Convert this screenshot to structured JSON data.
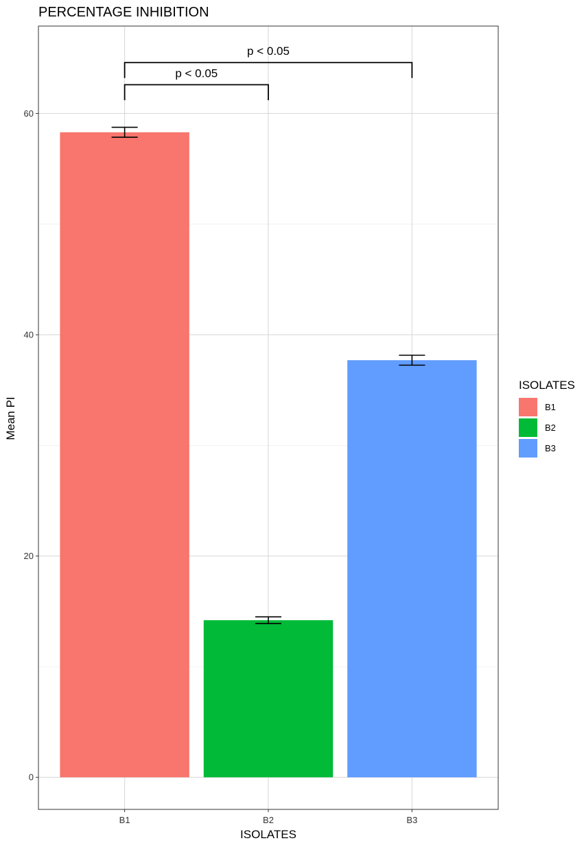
{
  "chart_data": {
    "type": "bar",
    "title": "PERCENTAGE INHIBITION",
    "xlabel": "ISOLATES",
    "ylabel": "Mean PI",
    "categories": [
      "B1",
      "B2",
      "B3"
    ],
    "values": [
      58.3,
      14.2,
      37.7
    ],
    "error": [
      0.45,
      0.3,
      0.45
    ],
    "colors": [
      "#F8766D",
      "#00BA38",
      "#619CFF"
    ],
    "ylim": [
      -2.9,
      67.9
    ],
    "yticks": [
      0,
      20,
      40,
      60
    ],
    "grid": true,
    "legend": {
      "title": "ISOLATES",
      "position": "right",
      "entries": [
        "B1",
        "B2",
        "B3"
      ]
    },
    "annotations": [
      {
        "from": "B1",
        "to": "B2",
        "text": "p < 0.05",
        "y": 62.6,
        "drop": 1.4
      },
      {
        "from": "B1",
        "to": "B3",
        "text": "p < 0.05",
        "y": 64.6,
        "drop": 1.4
      }
    ]
  }
}
